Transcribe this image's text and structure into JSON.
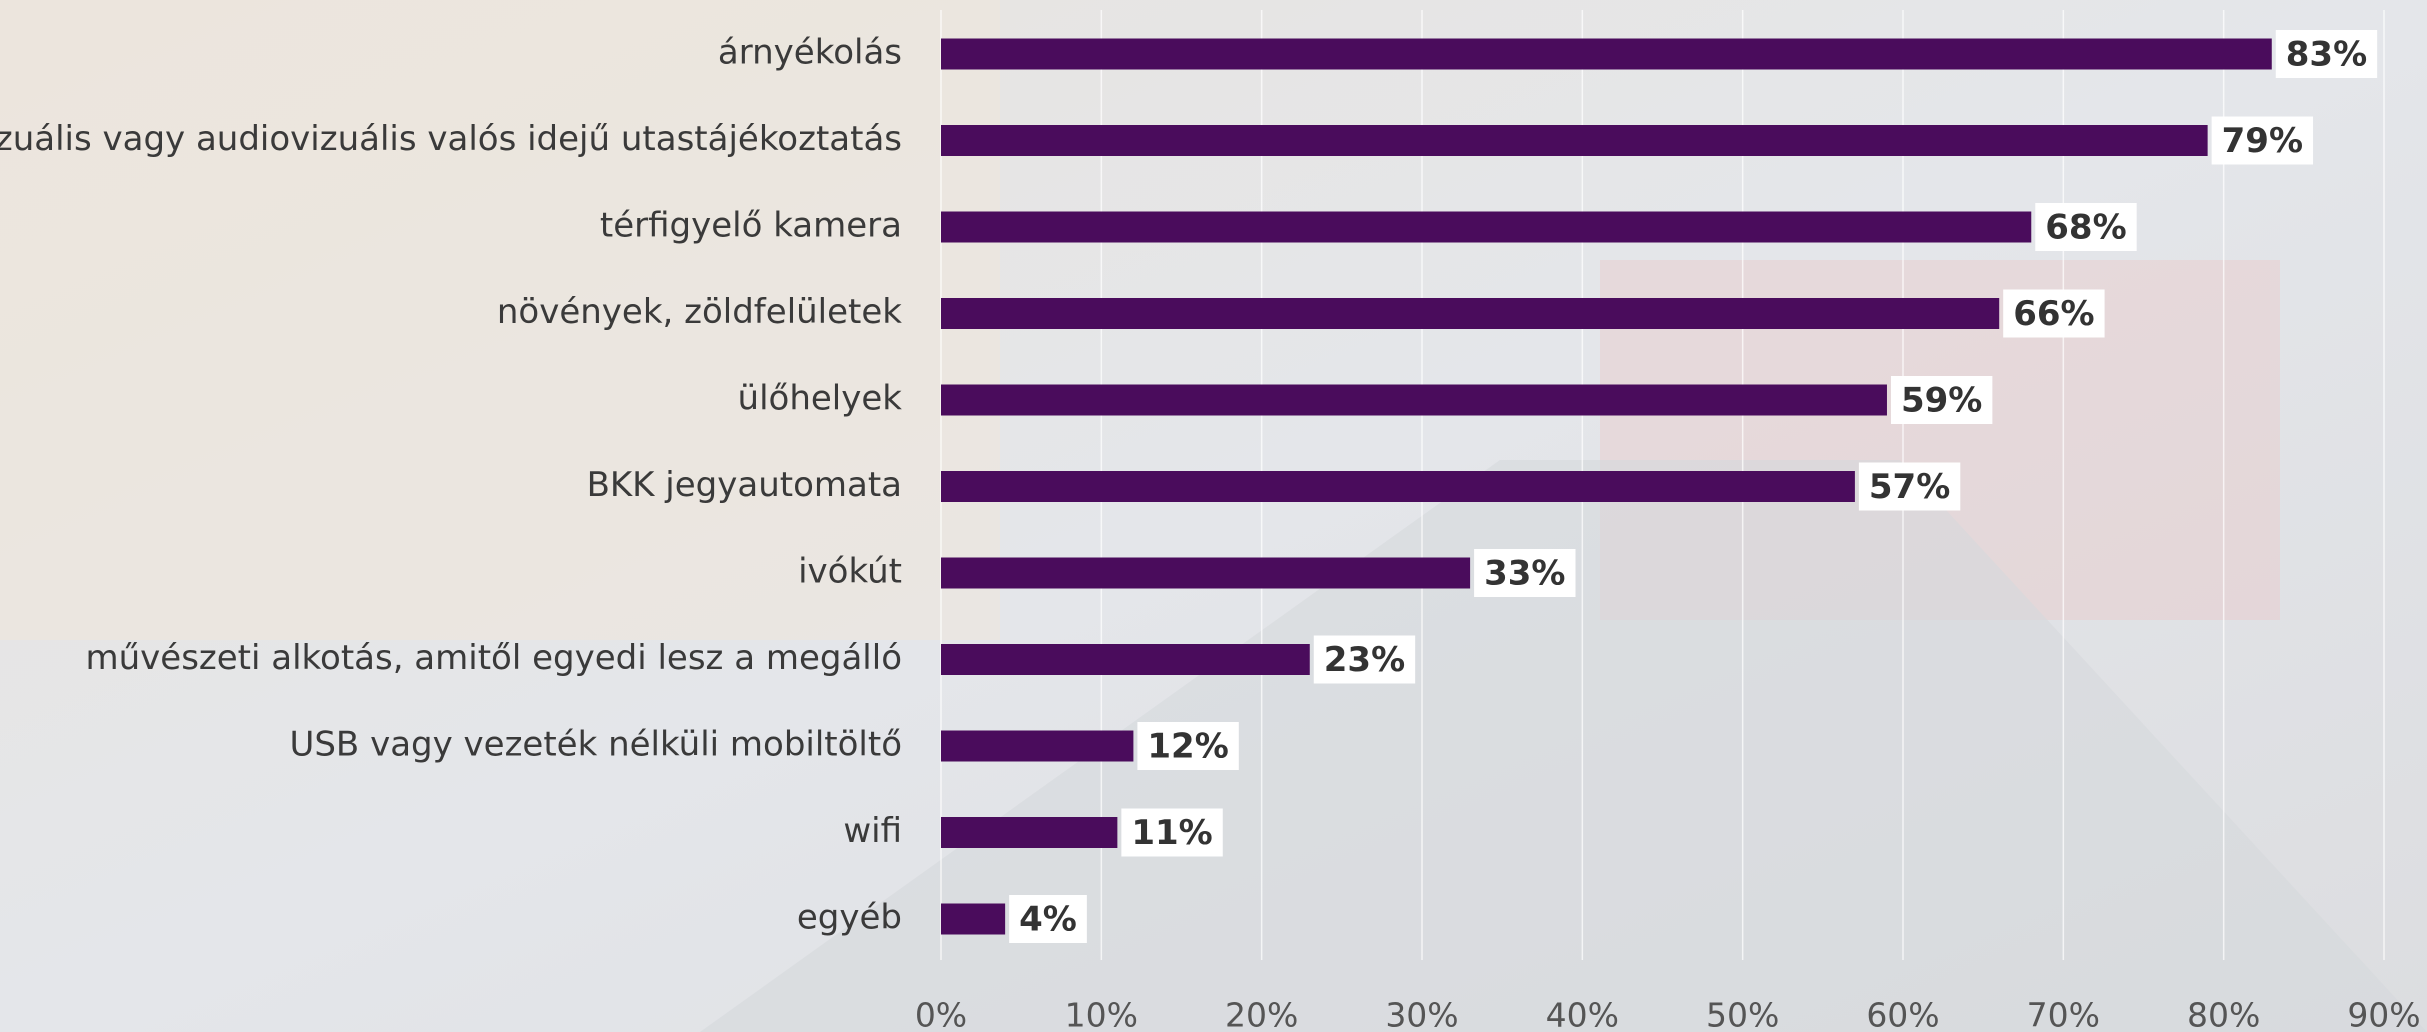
{
  "chart_data": {
    "type": "bar",
    "orientation": "horizontal",
    "categories": [
      "árnyékolás",
      "vizuális vagy audiovizuális valós idejű utastájékoztatás",
      "térfigyelő kamera",
      "növények, zöldfelületek",
      "ülőhelyek",
      "BKK jegyautomata",
      "ivókút",
      "művészeti alkotás, amitől egyedi lesz a megálló",
      "USB vagy vezeték nélküli mobiltöltő",
      "wifi",
      "egyéb"
    ],
    "values": [
      83,
      79,
      68,
      66,
      59,
      57,
      33,
      23,
      12,
      11,
      4
    ],
    "value_labels": [
      "83%",
      "79%",
      "68%",
      "66%",
      "59%",
      "57%",
      "33%",
      "23%",
      "12%",
      "11%",
      "4%"
    ],
    "color": "#4a0c5c",
    "xlim": [
      0,
      90
    ],
    "xticks": [
      {
        "value": 0,
        "label": "0%"
      },
      {
        "value": 10,
        "label": "10%"
      },
      {
        "value": 20,
        "label": "20%"
      },
      {
        "value": 30,
        "label": "30%"
      },
      {
        "value": 40,
        "label": "40%"
      },
      {
        "value": 50,
        "label": "50%"
      },
      {
        "value": 60,
        "label": "60%"
      },
      {
        "value": 70,
        "label": "70%"
      },
      {
        "value": 80,
        "label": "80%"
      },
      {
        "value": 90,
        "label": "90%"
      }
    ],
    "grid": true
  }
}
